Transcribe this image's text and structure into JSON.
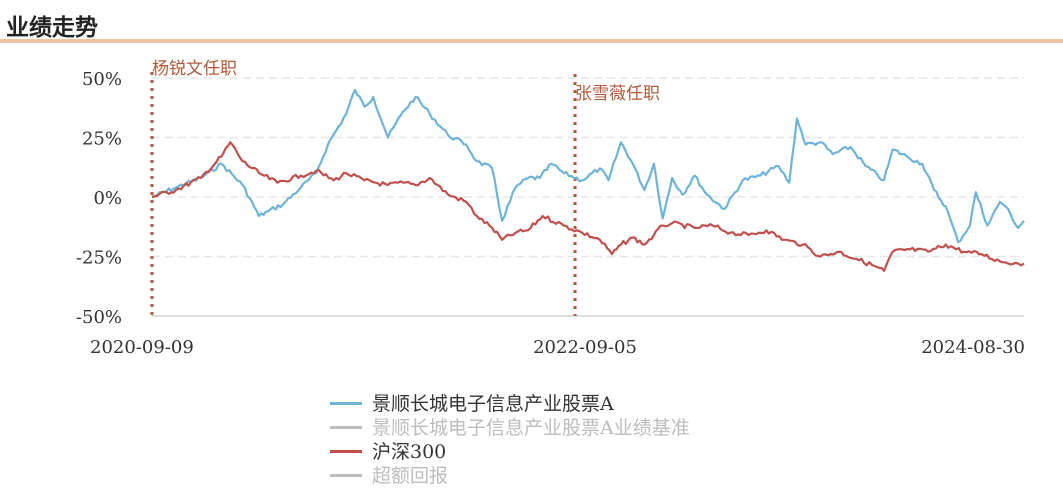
{
  "header": {
    "title": "业绩走势"
  },
  "colors": {
    "accent": "#f0c3a4",
    "fund": "#6eb4d9",
    "benchmark": "#c8c8c8",
    "hs300": "#bf504c",
    "excess": "#c8c8c8",
    "manager_marker": "#b05a3a",
    "grid": "#e6e6e6",
    "axis_text": "#333333",
    "legend_inactive": "#bdbdbd",
    "legend_active": "#333333"
  },
  "chart_data": {
    "type": "line",
    "xlabel": "",
    "ylabel": "",
    "x_range": [
      "2020-09-09",
      "2024-09-30"
    ],
    "x_ticks": [
      "2020-09-09",
      "2022-09-05",
      "2024-08-30"
    ],
    "ylim": [
      -50,
      50
    ],
    "y_unit": "%",
    "y_ticks": [
      "50%",
      "25%",
      "0%",
      "-25%",
      "-50%"
    ],
    "y_tick_values": [
      50,
      25,
      0,
      -25,
      -50
    ],
    "grid": true,
    "annotations": [
      {
        "label": "杨锐文任职",
        "date": "2020-09-09",
        "style": "dotted-vertical-line"
      },
      {
        "label": "张雪薇任职",
        "date": "2022-08-29",
        "style": "dotted-vertical-line"
      }
    ],
    "legend_position": "bottom",
    "series": [
      {
        "name": "景顺长城电子信息产业股票A",
        "visible": true,
        "color_key": "fund",
        "points": [
          [
            "2020-09-09",
            0
          ],
          [
            "2020-10-20",
            4
          ],
          [
            "2020-12-01",
            8
          ],
          [
            "2021-01-05",
            14
          ],
          [
            "2021-02-10",
            5
          ],
          [
            "2021-03-10",
            -8
          ],
          [
            "2021-03-25",
            -6
          ],
          [
            "2021-04-20",
            -3
          ],
          [
            "2021-05-20",
            4
          ],
          [
            "2021-06-15",
            10
          ],
          [
            "2021-07-05",
            22
          ],
          [
            "2021-08-05",
            35
          ],
          [
            "2021-08-20",
            45
          ],
          [
            "2021-09-05",
            38
          ],
          [
            "2021-09-20",
            42
          ],
          [
            "2021-10-15",
            25
          ],
          [
            "2021-11-10",
            36
          ],
          [
            "2021-12-01",
            42
          ],
          [
            "2021-12-25",
            35
          ],
          [
            "2022-01-25",
            26
          ],
          [
            "2022-02-25",
            22
          ],
          [
            "2022-03-15",
            15
          ],
          [
            "2022-04-10",
            12
          ],
          [
            "2022-04-27",
            -10
          ],
          [
            "2022-05-20",
            4
          ],
          [
            "2022-06-10",
            8
          ],
          [
            "2022-06-30",
            8
          ],
          [
            "2022-07-20",
            14
          ],
          [
            "2022-08-10",
            10
          ],
          [
            "2022-09-10",
            7
          ],
          [
            "2022-10-10",
            12
          ],
          [
            "2022-10-25",
            7
          ],
          [
            "2022-11-15",
            23
          ],
          [
            "2022-12-05",
            14
          ],
          [
            "2022-12-25",
            3
          ],
          [
            "2023-01-10",
            14
          ],
          [
            "2023-01-25",
            -9
          ],
          [
            "2023-02-10",
            8
          ],
          [
            "2023-02-28",
            1
          ],
          [
            "2023-03-20",
            9
          ],
          [
            "2023-04-10",
            1
          ],
          [
            "2023-05-10",
            -5
          ],
          [
            "2023-06-10",
            7
          ],
          [
            "2023-07-10",
            9
          ],
          [
            "2023-08-10",
            13
          ],
          [
            "2023-08-28",
            6
          ],
          [
            "2023-09-10",
            33
          ],
          [
            "2023-09-25",
            22
          ],
          [
            "2023-10-20",
            23
          ],
          [
            "2023-11-10",
            18
          ],
          [
            "2023-12-10",
            21
          ],
          [
            "2024-01-05",
            13
          ],
          [
            "2024-02-05",
            7
          ],
          [
            "2024-02-20",
            20
          ],
          [
            "2024-03-15",
            17
          ],
          [
            "2024-04-10",
            14
          ],
          [
            "2024-04-30",
            3
          ],
          [
            "2024-05-20",
            -4
          ],
          [
            "2024-06-10",
            -19
          ],
          [
            "2024-06-30",
            -12
          ],
          [
            "2024-07-10",
            2
          ],
          [
            "2024-07-30",
            -12
          ],
          [
            "2024-08-20",
            -2
          ],
          [
            "2024-08-30",
            -4
          ],
          [
            "2024-09-20",
            -13
          ],
          [
            "2024-09-30",
            -10
          ]
        ]
      },
      {
        "name": "景顺长城电子信息产业股票A业绩基准",
        "visible": false,
        "color_key": "benchmark",
        "points": []
      },
      {
        "name": "沪深300",
        "visible": true,
        "color_key": "hs300",
        "points": [
          [
            "2020-09-09",
            0
          ],
          [
            "2020-10-20",
            3
          ],
          [
            "2020-12-01",
            8
          ],
          [
            "2021-01-05",
            17
          ],
          [
            "2021-01-20",
            23
          ],
          [
            "2021-02-10",
            15
          ],
          [
            "2021-03-10",
            10
          ],
          [
            "2021-04-10",
            6
          ],
          [
            "2021-05-20",
            9
          ],
          [
            "2021-06-15",
            11
          ],
          [
            "2021-07-15",
            7
          ],
          [
            "2021-08-05",
            10
          ],
          [
            "2021-09-05",
            7
          ],
          [
            "2021-10-15",
            5
          ],
          [
            "2021-11-10",
            6
          ],
          [
            "2021-12-01",
            5
          ],
          [
            "2021-12-25",
            8
          ],
          [
            "2022-01-25",
            1
          ],
          [
            "2022-02-25",
            -2
          ],
          [
            "2022-03-15",
            -8
          ],
          [
            "2022-04-10",
            -13
          ],
          [
            "2022-04-27",
            -18
          ],
          [
            "2022-05-20",
            -15
          ],
          [
            "2022-06-10",
            -14
          ],
          [
            "2022-07-05",
            -8
          ],
          [
            "2022-08-10",
            -12
          ],
          [
            "2022-09-10",
            -15
          ],
          [
            "2022-10-10",
            -18
          ],
          [
            "2022-10-31",
            -24
          ],
          [
            "2022-11-15",
            -20
          ],
          [
            "2022-12-05",
            -17
          ],
          [
            "2022-12-25",
            -20
          ],
          [
            "2023-01-10",
            -16
          ],
          [
            "2023-01-25",
            -12
          ],
          [
            "2023-02-10",
            -11
          ],
          [
            "2023-03-20",
            -13
          ],
          [
            "2023-04-20",
            -12
          ],
          [
            "2023-05-20",
            -15
          ],
          [
            "2023-06-20",
            -16
          ],
          [
            "2023-07-20",
            -14
          ],
          [
            "2023-08-20",
            -18
          ],
          [
            "2023-09-20",
            -20
          ],
          [
            "2023-10-20",
            -25
          ],
          [
            "2023-11-20",
            -23
          ],
          [
            "2023-12-20",
            -26
          ],
          [
            "2024-01-20",
            -29
          ],
          [
            "2024-02-05",
            -31
          ],
          [
            "2024-02-20",
            -23
          ],
          [
            "2024-03-20",
            -22
          ],
          [
            "2024-04-20",
            -23
          ],
          [
            "2024-05-20",
            -20
          ],
          [
            "2024-06-20",
            -23
          ],
          [
            "2024-07-20",
            -24
          ],
          [
            "2024-08-20",
            -27
          ],
          [
            "2024-09-20",
            -28
          ],
          [
            "2024-09-30",
            -28
          ]
        ]
      },
      {
        "name": "超额回报",
        "visible": false,
        "color_key": "excess",
        "points": []
      }
    ]
  }
}
